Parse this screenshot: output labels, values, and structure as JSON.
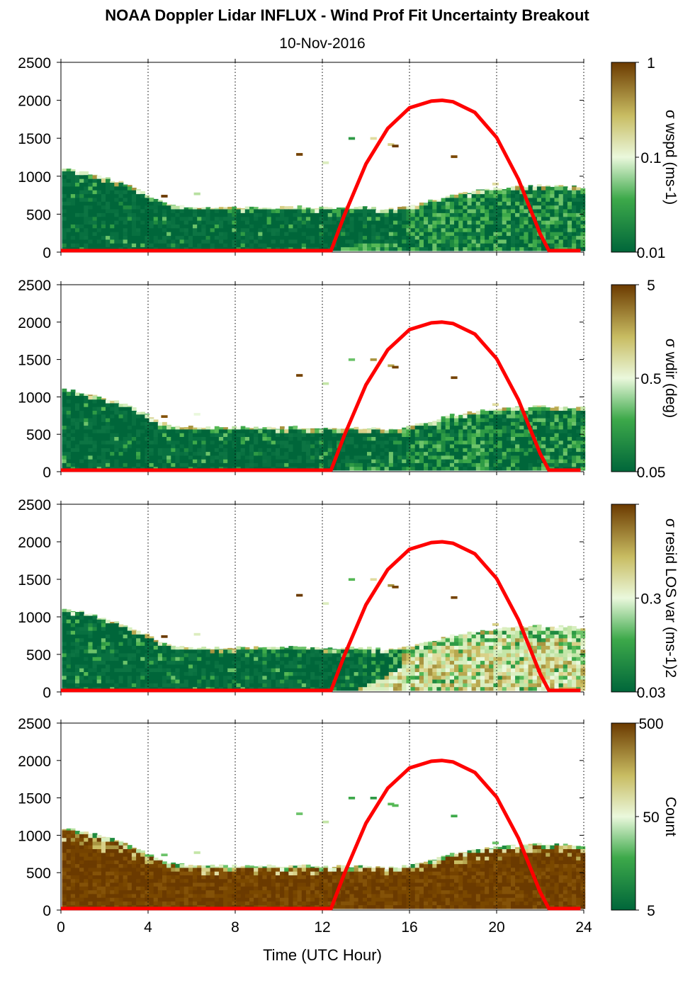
{
  "figure": {
    "title": "NOAA Doppler Lidar INFLUX - Wind Prof Fit Uncertainty Breakout",
    "date": "10-Nov-2016",
    "xlabel": "Time (UTC Hour)",
    "colors": {
      "dark_green": "#00663a",
      "mid_green": "#55b855",
      "pale_green": "#e6f6d6",
      "khaki": "#c0b060",
      "dark_brown": "#6b3a00",
      "solar_curve": "#ff0000"
    }
  },
  "chart_data": [
    {
      "type": "heatmap",
      "panel": "wspd",
      "x_label": "",
      "ylabel": "",
      "xlim": [
        0,
        24
      ],
      "ylim": [
        0,
        2500
      ],
      "xticks": [
        0,
        4,
        8,
        12,
        16,
        20,
        24
      ],
      "yticks": [
        0,
        500,
        1000,
        1500,
        2000,
        2500
      ],
      "vertical_gridlines_at": [
        4,
        8,
        12,
        16,
        20,
        24
      ],
      "colorbar": {
        "label": "σ wspd (ms-1)",
        "ticks": [
          "1",
          "0.1",
          "0.01"
        ],
        "scale": "log"
      },
      "echo_top_m": [
        [
          0,
          1100
        ],
        [
          1,
          1060
        ],
        [
          2,
          980
        ],
        [
          3,
          900
        ],
        [
          4,
          750
        ],
        [
          5,
          620
        ],
        [
          6,
          600
        ],
        [
          7,
          590
        ],
        [
          8,
          590
        ],
        [
          9,
          590
        ],
        [
          10,
          590
        ],
        [
          11,
          600
        ],
        [
          12,
          580
        ],
        [
          13,
          590
        ],
        [
          14,
          590
        ],
        [
          15,
          560
        ],
        [
          16,
          600
        ],
        [
          17,
          680
        ],
        [
          18,
          760
        ],
        [
          19,
          800
        ],
        [
          20,
          840
        ],
        [
          21,
          860
        ],
        [
          22,
          880
        ],
        [
          23,
          870
        ],
        [
          23.8,
          860
        ]
      ],
      "solar_elevation_curve": {
        "x": [
          12.4,
          13,
          14,
          15,
          16,
          17,
          17.5,
          18,
          19,
          20,
          21,
          22,
          22.4
        ],
        "y": [
          0,
          480,
          1160,
          1630,
          1900,
          1990,
          2000,
          1980,
          1840,
          1510,
          960,
          240,
          0
        ]
      }
    },
    {
      "type": "heatmap",
      "panel": "wdir",
      "x_label": "",
      "ylabel": "",
      "xlim": [
        0,
        24
      ],
      "ylim": [
        0,
        2500
      ],
      "xticks": [
        0,
        4,
        8,
        12,
        16,
        20,
        24
      ],
      "yticks": [
        0,
        500,
        1000,
        1500,
        2000,
        2500
      ],
      "vertical_gridlines_at": [
        4,
        8,
        12,
        16,
        20,
        24
      ],
      "colorbar": {
        "label": "σ wdir (deg)",
        "ticks": [
          "5",
          "0.5",
          "0.05"
        ],
        "scale": "log"
      },
      "echo_top_m": [
        [
          0,
          1100
        ],
        [
          1,
          1060
        ],
        [
          2,
          980
        ],
        [
          3,
          900
        ],
        [
          4,
          750
        ],
        [
          5,
          620
        ],
        [
          6,
          600
        ],
        [
          7,
          590
        ],
        [
          8,
          590
        ],
        [
          9,
          590
        ],
        [
          10,
          590
        ],
        [
          11,
          600
        ],
        [
          12,
          580
        ],
        [
          13,
          590
        ],
        [
          14,
          590
        ],
        [
          15,
          560
        ],
        [
          16,
          600
        ],
        [
          17,
          680
        ],
        [
          18,
          760
        ],
        [
          19,
          800
        ],
        [
          20,
          840
        ],
        [
          21,
          860
        ],
        [
          22,
          880
        ],
        [
          23,
          870
        ],
        [
          23.8,
          860
        ]
      ],
      "solar_elevation_curve": {
        "x": [
          12.4,
          13,
          14,
          15,
          16,
          17,
          17.5,
          18,
          19,
          20,
          21,
          22,
          22.4
        ],
        "y": [
          0,
          480,
          1160,
          1630,
          1900,
          1990,
          2000,
          1980,
          1840,
          1510,
          960,
          240,
          0
        ]
      }
    },
    {
      "type": "heatmap",
      "panel": "resid",
      "x_label": "",
      "ylabel": "",
      "xlim": [
        0,
        24
      ],
      "ylim": [
        0,
        2500
      ],
      "xticks": [
        0,
        4,
        8,
        12,
        16,
        20,
        24
      ],
      "yticks": [
        0,
        500,
        1000,
        1500,
        2000,
        2500
      ],
      "vertical_gridlines_at": [
        4,
        8,
        12,
        16,
        20,
        24
      ],
      "colorbar": {
        "label": "σ resid LOS var (ms-1)2",
        "ticks": [
          "",
          "0.3",
          "0.03"
        ],
        "scale": "log"
      },
      "echo_top_m": [
        [
          0,
          1100
        ],
        [
          1,
          1060
        ],
        [
          2,
          980
        ],
        [
          3,
          900
        ],
        [
          4,
          750
        ],
        [
          5,
          620
        ],
        [
          6,
          600
        ],
        [
          7,
          590
        ],
        [
          8,
          590
        ],
        [
          9,
          590
        ],
        [
          10,
          590
        ],
        [
          11,
          600
        ],
        [
          12,
          580
        ],
        [
          13,
          590
        ],
        [
          14,
          590
        ],
        [
          15,
          560
        ],
        [
          16,
          600
        ],
        [
          17,
          680
        ],
        [
          18,
          760
        ],
        [
          19,
          800
        ],
        [
          20,
          840
        ],
        [
          21,
          860
        ],
        [
          22,
          880
        ],
        [
          23,
          870
        ],
        [
          23.8,
          860
        ]
      ],
      "solar_elevation_curve": {
        "x": [
          12.4,
          13,
          14,
          15,
          16,
          17,
          17.5,
          18,
          19,
          20,
          21,
          22,
          22.4
        ],
        "y": [
          0,
          480,
          1160,
          1630,
          1900,
          1990,
          2000,
          1980,
          1840,
          1510,
          960,
          240,
          0
        ]
      }
    },
    {
      "type": "heatmap",
      "panel": "count",
      "xlabel": "Time (UTC Hour)",
      "ylabel": "",
      "xlim": [
        0,
        24
      ],
      "ylim": [
        0,
        2500
      ],
      "xticks": [
        0,
        4,
        8,
        12,
        16,
        20,
        24
      ],
      "yticks": [
        0,
        500,
        1000,
        1500,
        2000,
        2500
      ],
      "vertical_gridlines_at": [
        4,
        8,
        12,
        16,
        20,
        24
      ],
      "colorbar": {
        "label": "Count",
        "ticks": [
          "500",
          "50",
          "5"
        ],
        "scale": "log"
      },
      "echo_top_m": [
        [
          0,
          1100
        ],
        [
          1,
          1060
        ],
        [
          2,
          980
        ],
        [
          3,
          900
        ],
        [
          4,
          750
        ],
        [
          5,
          620
        ],
        [
          6,
          600
        ],
        [
          7,
          590
        ],
        [
          8,
          590
        ],
        [
          9,
          590
        ],
        [
          10,
          590
        ],
        [
          11,
          600
        ],
        [
          12,
          580
        ],
        [
          13,
          590
        ],
        [
          14,
          590
        ],
        [
          15,
          560
        ],
        [
          16,
          600
        ],
        [
          17,
          680
        ],
        [
          18,
          760
        ],
        [
          19,
          800
        ],
        [
          20,
          840
        ],
        [
          21,
          860
        ],
        [
          22,
          880
        ],
        [
          23,
          870
        ],
        [
          23.8,
          860
        ]
      ],
      "solar_elevation_curve": {
        "x": [
          12.4,
          13,
          14,
          15,
          16,
          17,
          17.5,
          18,
          19,
          20,
          21,
          22,
          22.4
        ],
        "y": [
          0,
          480,
          1160,
          1630,
          1900,
          1990,
          2000,
          1980,
          1840,
          1510,
          960,
          240,
          0
        ]
      }
    }
  ]
}
